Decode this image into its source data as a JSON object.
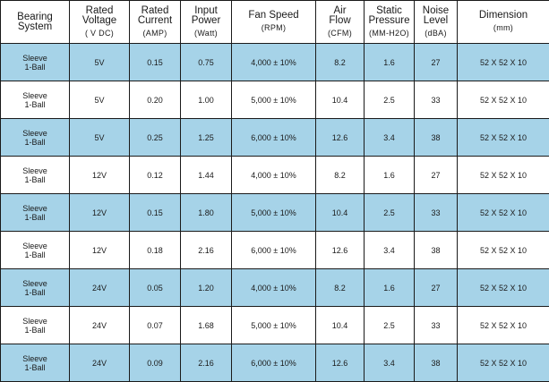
{
  "headers": [
    {
      "line1": "Bearing",
      "line2": "System",
      "unit": ""
    },
    {
      "line1": "Rated",
      "line2": "Voltage",
      "unit": "( V DC)"
    },
    {
      "line1": "Rated",
      "line2": "Current",
      "unit": "(AMP)"
    },
    {
      "line1": "Input",
      "line2": "Power",
      "unit": "(Watt)"
    },
    {
      "line1": "Fan Speed",
      "line2": "",
      "unit": "(RPM)"
    },
    {
      "line1": "Air",
      "line2": "Flow",
      "unit": "(CFM)"
    },
    {
      "line1": "Static",
      "line2": "Pressure",
      "unit": "(MM-H2O)"
    },
    {
      "line1": "Noise",
      "line2": "Level",
      "unit": "(dBA)"
    },
    {
      "line1": "Dimension",
      "line2": "",
      "unit": "(mm)"
    }
  ],
  "rows": [
    {
      "bearing1": "Sleeve",
      "bearing2": "1-Ball",
      "voltage": "5V",
      "current": "0.15",
      "power": "0.75",
      "speed": "4,000 ± 10%",
      "flow": "8.2",
      "pressure": "1.6",
      "noise": "27",
      "dimension": "52 X 52 X 10"
    },
    {
      "bearing1": "Sleeve",
      "bearing2": "1-Ball",
      "voltage": "5V",
      "current": "0.20",
      "power": "1.00",
      "speed": "5,000 ± 10%",
      "flow": "10.4",
      "pressure": "2.5",
      "noise": "33",
      "dimension": "52 X 52 X 10"
    },
    {
      "bearing1": "Sleeve",
      "bearing2": "1-Ball",
      "voltage": "5V",
      "current": "0.25",
      "power": "1.25",
      "speed": "6,000 ± 10%",
      "flow": "12.6",
      "pressure": "3.4",
      "noise": "38",
      "dimension": "52 X 52 X 10"
    },
    {
      "bearing1": "Sleeve",
      "bearing2": "1-Ball",
      "voltage": "12V",
      "current": "0.12",
      "power": "1.44",
      "speed": "4,000 ± 10%",
      "flow": "8.2",
      "pressure": "1.6",
      "noise": "27",
      "dimension": "52 X 52 X 10"
    },
    {
      "bearing1": "Sleeve",
      "bearing2": "1-Ball",
      "voltage": "12V",
      "current": "0.15",
      "power": "1.80",
      "speed": "5,000 ± 10%",
      "flow": "10.4",
      "pressure": "2.5",
      "noise": "33",
      "dimension": "52 X 52 X 10"
    },
    {
      "bearing1": "Sleeve",
      "bearing2": "1-Ball",
      "voltage": "12V",
      "current": "0.18",
      "power": "2.16",
      "speed": "6,000 ± 10%",
      "flow": "12.6",
      "pressure": "3.4",
      "noise": "38",
      "dimension": "52 X 52 X 10"
    },
    {
      "bearing1": "Sleeve",
      "bearing2": "1-Ball",
      "voltage": "24V",
      "current": "0.05",
      "power": "1.20",
      "speed": "4,000 ± 10%",
      "flow": "8.2",
      "pressure": "1.6",
      "noise": "27",
      "dimension": "52 X 52 X 10"
    },
    {
      "bearing1": "Sleeve",
      "bearing2": "1-Ball",
      "voltage": "24V",
      "current": "0.07",
      "power": "1.68",
      "speed": "5,000 ± 10%",
      "flow": "10.4",
      "pressure": "2.5",
      "noise": "33",
      "dimension": "52 X 52 X 10"
    },
    {
      "bearing1": "Sleeve",
      "bearing2": "1-Ball",
      "voltage": "24V",
      "current": "0.09",
      "power": "2.16",
      "speed": "6,000 ± 10%",
      "flow": "12.6",
      "pressure": "3.4",
      "noise": "38",
      "dimension": "52 X 52 X 10"
    }
  ],
  "colors": {
    "shade": "#a6d3e8",
    "border": "#1a1a1a"
  }
}
